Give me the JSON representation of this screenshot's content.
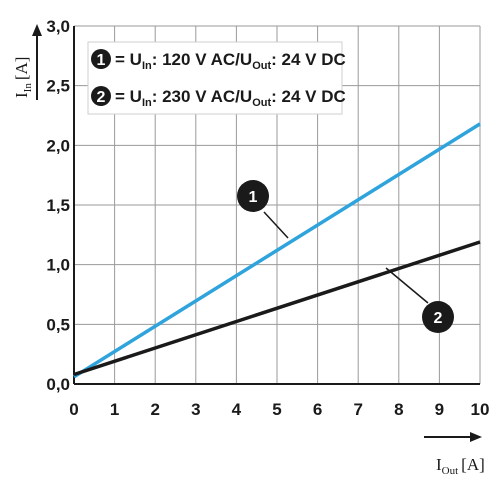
{
  "chart_data": {
    "type": "line",
    "xlim": [
      0,
      10
    ],
    "ylim": [
      0,
      3.0
    ],
    "x_ticks": [
      "0",
      "1",
      "2",
      "3",
      "4",
      "5",
      "6",
      "7",
      "8",
      "9",
      "10"
    ],
    "y_ticks": [
      "0,0",
      "0,5",
      "1,0",
      "1,5",
      "2,0",
      "2,5",
      "3,0"
    ],
    "grid": true,
    "xlabel": {
      "main": "I",
      "sub": "Out",
      "unit": "[A]"
    },
    "ylabel": {
      "main": "I",
      "sub": "In",
      "unit": "[A]"
    },
    "legend_position": "top-left",
    "series": [
      {
        "marker": "1",
        "color": "#2ea3dc",
        "x": [
          0,
          10
        ],
        "y": [
          0.06,
          2.18
        ],
        "legend": {
          "pre": "= U",
          "sub_in": "In",
          "mid": ": 120 V AC/U",
          "sub_out": "Out",
          "post": ": 24 V DC"
        }
      },
      {
        "marker": "2",
        "color": "#1a1a1a",
        "x": [
          0,
          10
        ],
        "y": [
          0.08,
          1.19
        ],
        "legend": {
          "pre": "= U",
          "sub_in": "In",
          "mid": ": 230 V AC/U",
          "sub_out": "Out",
          "post": ": 24 V DC"
        }
      }
    ]
  }
}
